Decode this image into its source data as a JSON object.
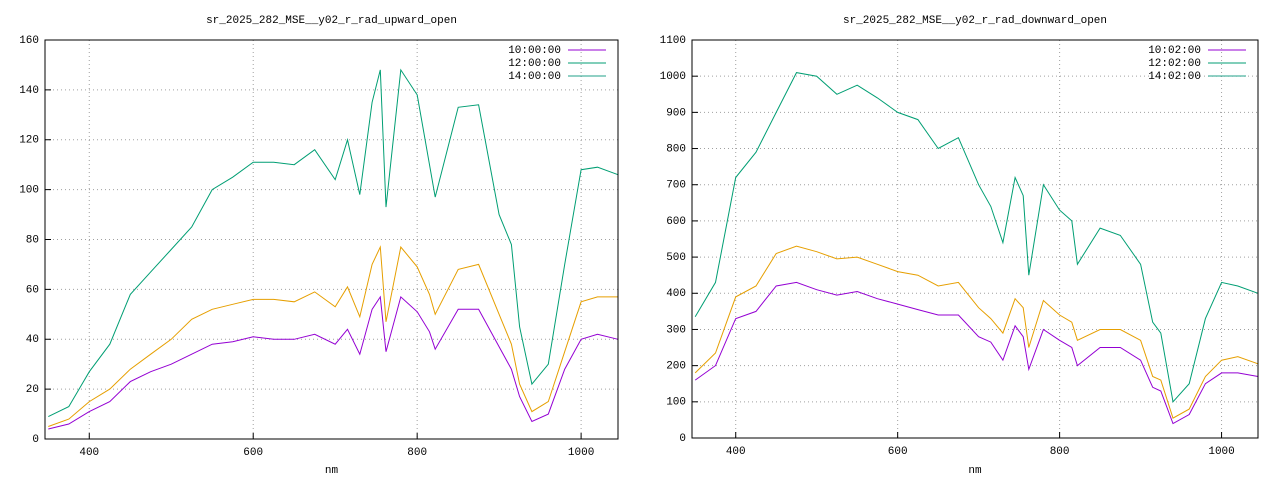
{
  "chart_data": [
    {
      "type": "line",
      "title": "sr_2025_282_MSE__y02_r_rad_upward_open",
      "x_label": "nm",
      "x": [
        350,
        375,
        400,
        425,
        450,
        475,
        500,
        525,
        550,
        575,
        600,
        625,
        650,
        675,
        700,
        715,
        730,
        745,
        755,
        762,
        780,
        800,
        815,
        822,
        850,
        875,
        900,
        915,
        925,
        940,
        960,
        980,
        1000,
        1020,
        1045
      ],
      "series": [
        {
          "name": "10:00:00",
          "color": "#9400d3",
          "legend_color": "#9400d3",
          "values": [
            4,
            6,
            11,
            15,
            23,
            27,
            30,
            34,
            38,
            39,
            41,
            40,
            40,
            42,
            38,
            44,
            34,
            52,
            57,
            35,
            57,
            51,
            43,
            36,
            52,
            52,
            37,
            28,
            17,
            7,
            10,
            28,
            40,
            42,
            40
          ]
        },
        {
          "name": "12:00:00",
          "color": "#e69f00",
          "legend_color": "#009e73",
          "values": [
            5,
            8,
            15,
            20,
            28,
            34,
            40,
            48,
            52,
            54,
            56,
            56,
            55,
            59,
            53,
            61,
            49,
            70,
            77,
            47,
            77,
            69,
            58,
            50,
            68,
            70,
            50,
            38,
            22,
            11,
            15,
            35,
            55,
            57,
            57
          ]
        },
        {
          "name": "14:00:00",
          "color": "#009e73",
          "legend_color": "#20a08a",
          "values": [
            9,
            13,
            27,
            38,
            58,
            67,
            76,
            85,
            100,
            105,
            111,
            111,
            110,
            116,
            104,
            120,
            98,
            135,
            148,
            93,
            148,
            138,
            110,
            97,
            133,
            134,
            90,
            78,
            45,
            22,
            30,
            70,
            108,
            109,
            106
          ]
        }
      ],
      "xlim": [
        346,
        1045
      ],
      "ylim": [
        0,
        160
      ],
      "xticks": [
        400,
        600,
        800,
        1000
      ],
      "yticks": [
        0,
        20,
        40,
        60,
        80,
        100,
        120,
        140,
        160
      ],
      "grid": true,
      "legend": "top-right"
    },
    {
      "type": "line",
      "title": "sr_2025_282_MSE__y02_r_rad_downward_open",
      "x_label": "nm",
      "x": [
        350,
        375,
        400,
        425,
        450,
        475,
        500,
        525,
        550,
        575,
        600,
        625,
        650,
        675,
        700,
        715,
        730,
        745,
        755,
        762,
        780,
        800,
        815,
        822,
        850,
        875,
        900,
        915,
        925,
        940,
        960,
        980,
        1000,
        1020,
        1045
      ],
      "series": [
        {
          "name": "10:02:00",
          "color": "#9400d3",
          "legend_color": "#9400d3",
          "values": [
            160,
            200,
            330,
            350,
            420,
            430,
            410,
            395,
            405,
            385,
            370,
            355,
            340,
            340,
            280,
            265,
            215,
            310,
            280,
            190,
            300,
            270,
            250,
            200,
            250,
            250,
            215,
            140,
            130,
            40,
            65,
            150,
            180,
            180,
            170
          ]
        },
        {
          "name": "12:02:00",
          "color": "#e69f00",
          "legend_color": "#009e73",
          "values": [
            180,
            235,
            390,
            420,
            510,
            530,
            515,
            495,
            500,
            480,
            460,
            450,
            420,
            430,
            360,
            330,
            290,
            385,
            360,
            250,
            380,
            340,
            320,
            270,
            300,
            300,
            270,
            170,
            160,
            55,
            80,
            170,
            215,
            225,
            205
          ]
        },
        {
          "name": "14:02:00",
          "color": "#009e73",
          "legend_color": "#20a08a",
          "values": [
            335,
            430,
            720,
            790,
            900,
            1010,
            1000,
            950,
            975,
            940,
            900,
            880,
            800,
            830,
            700,
            640,
            540,
            720,
            670,
            450,
            700,
            630,
            600,
            480,
            580,
            560,
            480,
            320,
            290,
            100,
            150,
            330,
            430,
            420,
            400
          ]
        }
      ],
      "xlim": [
        346,
        1045
      ],
      "ylim": [
        0,
        1100
      ],
      "xticks": [
        400,
        600,
        800,
        1000
      ],
      "yticks": [
        0,
        100,
        200,
        300,
        400,
        500,
        600,
        700,
        800,
        900,
        1000,
        1100
      ],
      "grid": true,
      "legend": "top-right"
    }
  ]
}
